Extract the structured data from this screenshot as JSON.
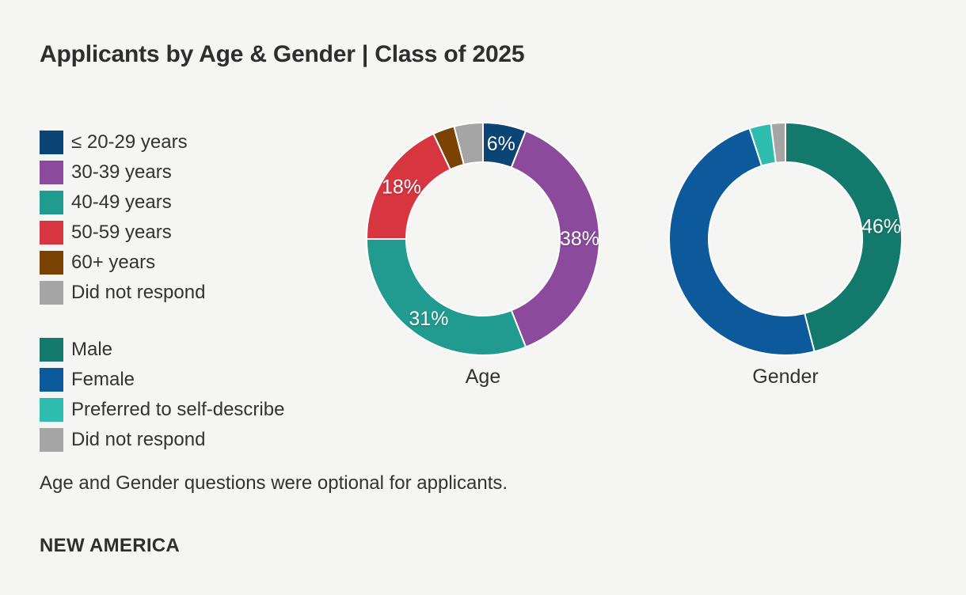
{
  "page": {
    "background_color": "#f5f5f4",
    "text_color": "#333333",
    "title": "Applicants by Age & Gender | Class of 2025",
    "footnote": "Age and Gender questions were optional for applicants.",
    "logo": "NEW AMERICA"
  },
  "chart_data": [
    {
      "type": "pie",
      "subtype": "donut",
      "title": "Age",
      "start_angle_deg": 0,
      "direction": "clockwise",
      "hole_ratio": 0.66,
      "label_color": "#ffffff",
      "legend_position": "left",
      "slices": [
        {
          "label": "≤ 20-29 years",
          "value": 6,
          "color": "#0a4576",
          "data_label": "6%"
        },
        {
          "label": "30-39 years",
          "value": 38,
          "color": "#8c4a9d",
          "data_label": "38%"
        },
        {
          "label": "40-49 years",
          "value": 31,
          "color": "#219a90",
          "data_label": "31%"
        },
        {
          "label": "50-59 years",
          "value": 18,
          "color": "#d73540",
          "data_label": "18%"
        },
        {
          "label": "60+ years",
          "value": 3,
          "color": "#7a4203",
          "data_label": null
        },
        {
          "label": "Did not respond",
          "value": 4,
          "color": "#a5a5a5",
          "data_label": null
        }
      ]
    },
    {
      "type": "pie",
      "subtype": "donut",
      "title": "Gender",
      "start_angle_deg": 0,
      "direction": "clockwise",
      "hole_ratio": 0.66,
      "label_color": "#ffffff",
      "legend_position": "left",
      "slices": [
        {
          "label": "Male",
          "value": 46,
          "color": "#14796d",
          "data_label": "46%"
        },
        {
          "label": "Female",
          "value": 49,
          "color": "#0c5a9b",
          "data_label": null
        },
        {
          "label": "Preferred to self-describe",
          "value": 3,
          "color": "#2ebcae",
          "data_label": null
        },
        {
          "label": "Did not respond",
          "value": 2,
          "color": "#a5a5a5",
          "data_label": null
        }
      ]
    }
  ]
}
